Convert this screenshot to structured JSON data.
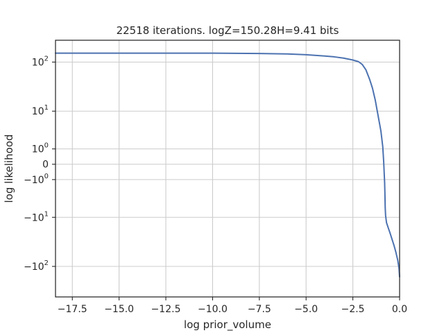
{
  "chart_data": {
    "type": "line",
    "title": "22518 iterations. logZ=150.28H=9.41 bits",
    "xlabel": "log prior_volume",
    "ylabel": "log likelihood",
    "xlim": [
      -18.4,
      0.0
    ],
    "ylim": [
      -400,
      270
    ],
    "yscale": "symlog",
    "grid": true,
    "color": "#4c72b0",
    "x_ticks": [
      {
        "value": -17.5,
        "label": "−17.5"
      },
      {
        "value": -15.0,
        "label": "−15.0"
      },
      {
        "value": -12.5,
        "label": "−12.5"
      },
      {
        "value": -10.0,
        "label": "−10.0"
      },
      {
        "value": -7.5,
        "label": "−7.5"
      },
      {
        "value": -5.0,
        "label": "−5.0"
      },
      {
        "value": -2.5,
        "label": "−2.5"
      },
      {
        "value": 0.0,
        "label": "0.0"
      }
    ],
    "y_ticks": [
      {
        "value": 100,
        "base": "10",
        "exp": "2",
        "sign": ""
      },
      {
        "value": 10,
        "base": "10",
        "exp": "1",
        "sign": ""
      },
      {
        "value": 1,
        "base": "10",
        "exp": "0",
        "sign": ""
      },
      {
        "value": 0,
        "base": "0",
        "exp": "",
        "sign": ""
      },
      {
        "value": -1,
        "base": "10",
        "exp": "0",
        "sign": "−"
      },
      {
        "value": -10,
        "base": "10",
        "exp": "1",
        "sign": "−"
      },
      {
        "value": -100,
        "base": "10",
        "exp": "2",
        "sign": "−"
      }
    ],
    "series": [
      {
        "x": [
          -18.4,
          -15.0,
          -10.0,
          -7.5,
          -6.0,
          -5.0,
          -4.0,
          -3.5,
          -3.0,
          -2.5,
          -2.2,
          -2.0,
          -1.8,
          -1.6,
          -1.45,
          -1.3,
          -1.15,
          -1.0,
          -0.9,
          -0.85,
          -0.82,
          -0.8,
          -0.79,
          -0.78,
          -0.77,
          -0.75,
          -0.7,
          -0.6,
          -0.5,
          -0.4,
          -0.3,
          -0.2,
          -0.1,
          -0.03,
          0.0
        ],
        "y": [
          150,
          150,
          150,
          148,
          145,
          140,
          132,
          127,
          120,
          110,
          102,
          90,
          70,
          45,
          30,
          17,
          8,
          3.5,
          1.2,
          0.1,
          -0.6,
          -1.3,
          -2.2,
          -3.6,
          -6.0,
          -9.0,
          -13,
          -17,
          -22,
          -29,
          -38,
          -52,
          -75,
          -110,
          -160
        ]
      }
    ]
  }
}
